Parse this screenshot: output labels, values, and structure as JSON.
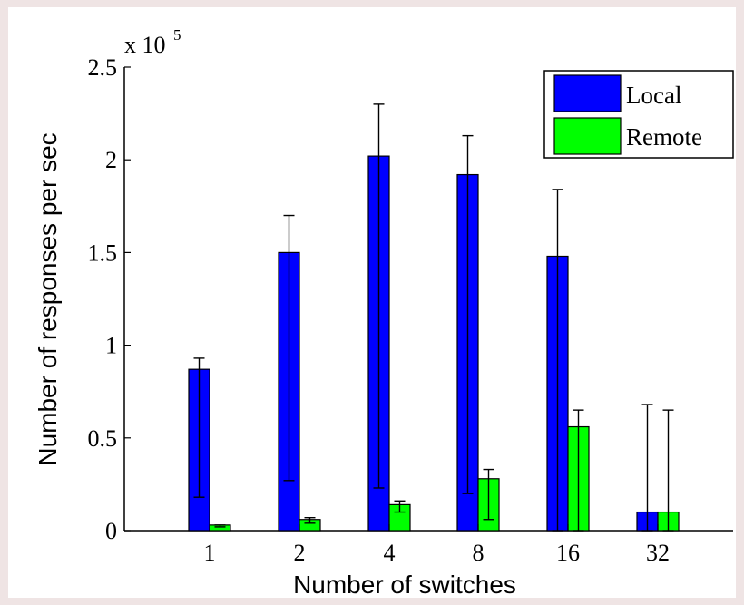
{
  "chart_data": {
    "type": "bar",
    "xlabel": "Number of switches",
    "ylabel": "Number of responses per sec",
    "y_multiplier": "x 10",
    "y_multiplier_exponent": "5",
    "categories": [
      "1",
      "2",
      "4",
      "8",
      "16",
      "32"
    ],
    "ylim": [
      0,
      2.5
    ],
    "yticks": [
      0,
      0.5,
      1,
      1.5,
      2,
      2.5
    ],
    "ytick_labels": [
      "0",
      "0.5",
      "1",
      "1.5",
      "2",
      "2.5"
    ],
    "legend_position": "top-right",
    "series": [
      {
        "name": "Local",
        "color": "#0000ff",
        "values": [
          0.87,
          1.5,
          2.02,
          1.92,
          1.48,
          0.1
        ],
        "error_low": [
          0.18,
          0.27,
          0.23,
          0.2,
          0.0,
          0.0
        ],
        "error_high": [
          0.93,
          1.7,
          2.3,
          2.13,
          1.84,
          0.68
        ]
      },
      {
        "name": "Remote",
        "color": "#00ff00",
        "values": [
          0.03,
          0.06,
          0.14,
          0.28,
          0.56,
          0.1
        ],
        "error_low": [
          0.02,
          0.04,
          0.1,
          0.06,
          0.0,
          0.0
        ],
        "error_high": [
          0.03,
          0.07,
          0.16,
          0.33,
          0.65,
          0.65
        ]
      }
    ]
  }
}
